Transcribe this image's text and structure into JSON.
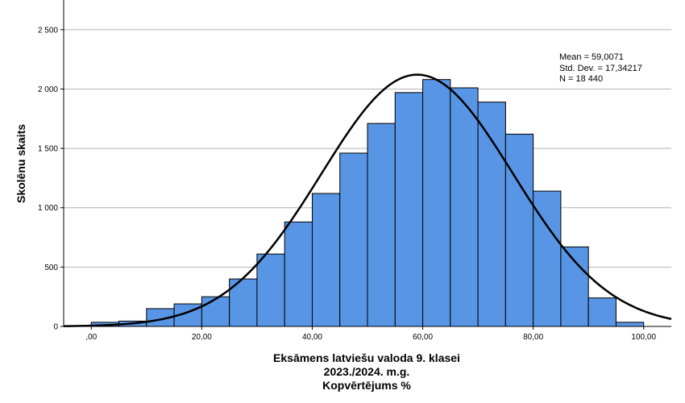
{
  "chart_data": {
    "type": "bar",
    "subtype": "histogram",
    "xlabel_lines": [
      "Eksāmens latviešu valoda 9. klasei",
      "2023./2024. m.g.",
      "Kopvērtējums %"
    ],
    "ylabel": "Skolēnu skaits",
    "xlim": [
      -5,
      105
    ],
    "ylim": [
      0,
      2750
    ],
    "x_ticks": [
      0,
      20,
      40,
      60,
      80,
      100
    ],
    "x_tick_labels": [
      ",00",
      "20,00",
      "40,00",
      "60,00",
      "80,00",
      "100,00"
    ],
    "y_ticks": [
      0,
      500,
      1000,
      1500,
      2000,
      2500
    ],
    "y_tick_labels": [
      "0",
      "500",
      "1 000",
      "1 500",
      "2 000",
      "2 500"
    ],
    "grid": "horizontal",
    "bin_width": 5,
    "bins": [
      {
        "start": 0,
        "end": 5,
        "count": 35
      },
      {
        "start": 5,
        "end": 10,
        "count": 45
      },
      {
        "start": 10,
        "end": 15,
        "count": 150
      },
      {
        "start": 15,
        "end": 20,
        "count": 190
      },
      {
        "start": 20,
        "end": 25,
        "count": 250
      },
      {
        "start": 25,
        "end": 30,
        "count": 400
      },
      {
        "start": 30,
        "end": 35,
        "count": 610
      },
      {
        "start": 35,
        "end": 40,
        "count": 880
      },
      {
        "start": 40,
        "end": 45,
        "count": 1120
      },
      {
        "start": 45,
        "end": 50,
        "count": 1460
      },
      {
        "start": 50,
        "end": 55,
        "count": 1710
      },
      {
        "start": 55,
        "end": 60,
        "count": 1970
      },
      {
        "start": 60,
        "end": 65,
        "count": 2080
      },
      {
        "start": 65,
        "end": 70,
        "count": 2010
      },
      {
        "start": 70,
        "end": 75,
        "count": 1890
      },
      {
        "start": 75,
        "end": 80,
        "count": 1620
      },
      {
        "start": 80,
        "end": 85,
        "count": 1140
      },
      {
        "start": 85,
        "end": 90,
        "count": 670
      },
      {
        "start": 90,
        "end": 95,
        "count": 240
      },
      {
        "start": 95,
        "end": 100,
        "count": 35
      }
    ],
    "normal_curve": {
      "mean": 59.0071,
      "std_dev": 17.34217,
      "n": 18440
    },
    "stats_lines": [
      "Mean = 59,0071",
      "Std. Dev. = 17,34217",
      "N = 18 440"
    ],
    "colors": {
      "bar_fill": "#5895e4",
      "bar_stroke": "#000000",
      "curve": "#000000",
      "grid": "#b4b4b4",
      "axis": "#000000"
    }
  }
}
